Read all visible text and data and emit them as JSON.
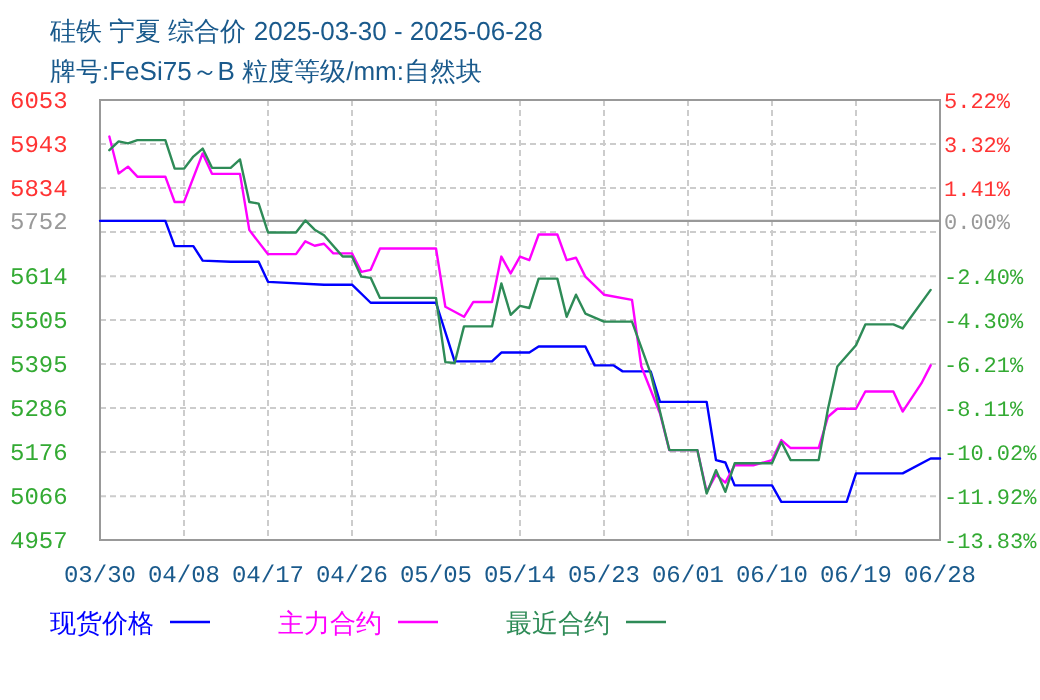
{
  "chart_data": {
    "type": "line",
    "title": "硅铁 宁夏 综合价 2025-03-30 - 2025-06-28",
    "subtitle": "牌号:FeSi75～B 粒度等级/mm:自然块",
    "xlim": [
      "2025-03-30",
      "2025-06-28"
    ],
    "xticks": [
      {
        "value": "2025-03-30",
        "label": "03/30"
      },
      {
        "value": "2025-04-08",
        "label": "04/08"
      },
      {
        "value": "2025-04-17",
        "label": "04/17"
      },
      {
        "value": "2025-04-26",
        "label": "04/26"
      },
      {
        "value": "2025-05-05",
        "label": "05/05"
      },
      {
        "value": "2025-05-14",
        "label": "05/14"
      },
      {
        "value": "2025-05-23",
        "label": "05/23"
      },
      {
        "value": "2025-06-01",
        "label": "06/01"
      },
      {
        "value": "2025-06-10",
        "label": "06/10"
      },
      {
        "value": "2025-06-19",
        "label": "06/19"
      },
      {
        "value": "2025-06-28",
        "label": "06/28"
      }
    ],
    "ylim": [
      4957,
      6053
    ],
    "yticks": [
      4957,
      5066,
      {
        "value": 5176.2,
        "label": "5176"
      },
      {
        "value": 5285.8,
        "label": "5286"
      },
      {
        "value": 5395.4,
        "label": "5395"
      },
      5505,
      5614,
      {
        "value": 5724.2,
        "label": null
      },
      {
        "value": 5833.8,
        "label": "5834"
      },
      {
        "value": 5943.4,
        "label": "5943"
      },
      6053
    ],
    "y2lim": [
      -13.83,
      5.22
    ],
    "y2ticks": [
      {
        "value": -13.83,
        "label": "-13.83%"
      },
      {
        "value": -11.92,
        "label": "-11.92%"
      },
      {
        "value": -10.02,
        "label": "-10.02%"
      },
      {
        "value": -8.11,
        "label": "-8.11%"
      },
      {
        "value": -6.21,
        "label": "-6.21%"
      },
      {
        "value": -4.3,
        "label": "-4.30%"
      },
      {
        "value": -2.4,
        "label": "-2.40%"
      },
      {
        "value": 0,
        "label": "0.00%"
      },
      {
        "value": 1.41,
        "label": "1.41%"
      },
      {
        "value": 3.32,
        "label": "3.32%"
      },
      {
        "value": 5.22,
        "label": "5.22%"
      }
    ],
    "ref_lines": [
      {
        "axis": "y",
        "value": 5752,
        "label": "5752",
        "color": "#999999"
      }
    ],
    "grid": true,
    "legend": "bottom",
    "series": [
      {
        "name": "现货价格",
        "color": "#0000ff",
        "x": [
          "2025-03-30",
          "2025-04-06",
          "2025-04-07",
          "2025-04-09",
          "2025-04-10",
          "2025-04-13",
          "2025-04-16",
          "2025-04-17",
          "2025-04-23",
          "2025-04-26",
          "2025-04-28",
          "2025-05-05",
          "2025-05-07",
          "2025-05-11",
          "2025-05-12",
          "2025-05-15",
          "2025-05-16",
          "2025-05-21",
          "2025-05-22",
          "2025-05-24",
          "2025-05-25",
          "2025-05-28",
          "2025-05-29",
          "2025-06-03",
          "2025-06-04",
          "2025-06-05",
          "2025-06-06",
          "2025-06-10",
          "2025-06-11",
          "2025-06-18",
          "2025-06-19",
          "2025-06-24",
          "2025-06-27",
          "2025-06-28"
        ],
        "values": [
          5752,
          5752,
          5689,
          5689,
          5653,
          5650,
          5650,
          5600,
          5593,
          5593,
          5548,
          5548,
          5402,
          5402,
          5424,
          5424,
          5439,
          5439,
          5392,
          5392,
          5377,
          5377,
          5301,
          5301,
          5156,
          5150,
          5093,
          5093,
          5052,
          5052,
          5123,
          5123,
          5160,
          5160
        ]
      },
      {
        "name": "主力合约",
        "color": "#ff00ff",
        "x": [
          "2025-03-31",
          "2025-04-01",
          "2025-04-02",
          "2025-04-03",
          "2025-04-06",
          "2025-04-07",
          "2025-04-08",
          "2025-04-10",
          "2025-04-11",
          "2025-04-14",
          "2025-04-15",
          "2025-04-17",
          "2025-04-20",
          "2025-04-21",
          "2025-04-22",
          "2025-04-23",
          "2025-04-24",
          "2025-04-26",
          "2025-04-27",
          "2025-04-28",
          "2025-04-29",
          "2025-05-05",
          "2025-05-06",
          "2025-05-08",
          "2025-05-09",
          "2025-05-11",
          "2025-05-12",
          "2025-05-13",
          "2025-05-14",
          "2025-05-15",
          "2025-05-16",
          "2025-05-18",
          "2025-05-19",
          "2025-05-20",
          "2025-05-21",
          "2025-05-23",
          "2025-05-26",
          "2025-05-27",
          "2025-05-29",
          "2025-05-30",
          "2025-06-02",
          "2025-06-03",
          "2025-06-04",
          "2025-06-05",
          "2025-06-06",
          "2025-06-08",
          "2025-06-10",
          "2025-06-11",
          "2025-06-12",
          "2025-06-15",
          "2025-06-16",
          "2025-06-17",
          "2025-06-19",
          "2025-06-20",
          "2025-06-23",
          "2025-06-24",
          "2025-06-26",
          "2025-06-27"
        ],
        "values": [
          5962,
          5870,
          5887,
          5862,
          5862,
          5799,
          5799,
          5920,
          5869,
          5869,
          5729,
          5669,
          5669,
          5701,
          5690,
          5695,
          5671,
          5671,
          5625,
          5630,
          5683,
          5683,
          5538,
          5513,
          5550,
          5550,
          5663,
          5621,
          5663,
          5654,
          5718,
          5718,
          5654,
          5660,
          5613,
          5568,
          5555,
          5389,
          5272,
          5181,
          5181,
          5077,
          5120,
          5100,
          5143,
          5143,
          5156,
          5206,
          5186,
          5186,
          5264,
          5284,
          5284,
          5327,
          5327,
          5277,
          5347,
          5392
        ]
      },
      {
        "name": "最近合约",
        "color": "#2e8b57",
        "x": [
          "2025-03-31",
          "2025-04-01",
          "2025-04-02",
          "2025-04-03",
          "2025-04-06",
          "2025-04-07",
          "2025-04-08",
          "2025-04-09",
          "2025-04-10",
          "2025-04-11",
          "2025-04-13",
          "2025-04-14",
          "2025-04-15",
          "2025-04-16",
          "2025-04-17",
          "2025-04-20",
          "2025-04-21",
          "2025-04-22",
          "2025-04-23",
          "2025-04-25",
          "2025-04-26",
          "2025-04-27",
          "2025-04-28",
          "2025-04-29",
          "2025-05-05",
          "2025-05-06",
          "2025-05-07",
          "2025-05-08",
          "2025-05-11",
          "2025-05-12",
          "2025-05-13",
          "2025-05-14",
          "2025-05-15",
          "2025-05-16",
          "2025-05-18",
          "2025-05-19",
          "2025-05-20",
          "2025-05-21",
          "2025-05-23",
          "2025-05-26",
          "2025-05-28",
          "2025-05-30",
          "2025-06-02",
          "2025-06-03",
          "2025-06-04",
          "2025-06-05",
          "2025-06-06",
          "2025-06-10",
          "2025-06-11",
          "2025-06-12",
          "2025-06-15",
          "2025-06-16",
          "2025-06-17",
          "2025-06-19",
          "2025-06-20",
          "2025-06-23",
          "2025-06-24",
          "2025-06-27"
        ],
        "values": [
          5928,
          5950,
          5945,
          5953,
          5953,
          5882,
          5882,
          5912,
          5932,
          5884,
          5884,
          5905,
          5799,
          5795,
          5723,
          5723,
          5753,
          5730,
          5716,
          5663,
          5663,
          5613,
          5610,
          5560,
          5560,
          5400,
          5398,
          5489,
          5489,
          5596,
          5518,
          5540,
          5535,
          5608,
          5608,
          5513,
          5568,
          5521,
          5501,
          5501,
          5372,
          5181,
          5181,
          5073,
          5131,
          5077,
          5148,
          5148,
          5201,
          5156,
          5156,
          5284,
          5389,
          5442,
          5494,
          5494,
          5484,
          5580
        ]
      }
    ]
  }
}
